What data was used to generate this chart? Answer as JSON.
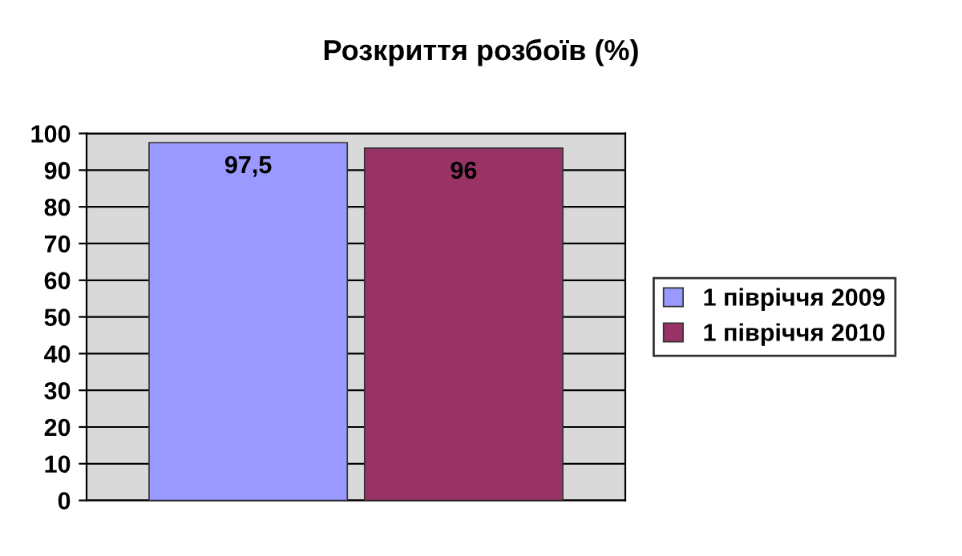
{
  "chart_data": {
    "type": "bar",
    "title": "Розкриття розбоїв (%)",
    "categories": [
      null
    ],
    "series": [
      {
        "name": "1 півріччя 2009",
        "color": "#9999ff",
        "values": [
          97.5
        ],
        "value_labels": [
          "97,5"
        ]
      },
      {
        "name": "1 півріччя 2010",
        "color": "#993366",
        "values": [
          96
        ],
        "value_labels": [
          "96"
        ]
      }
    ],
    "ylim": [
      0,
      100
    ],
    "yticks": [
      0,
      10,
      20,
      30,
      40,
      50,
      60,
      70,
      80,
      90,
      100
    ],
    "grid": "y",
    "legend": "right"
  }
}
